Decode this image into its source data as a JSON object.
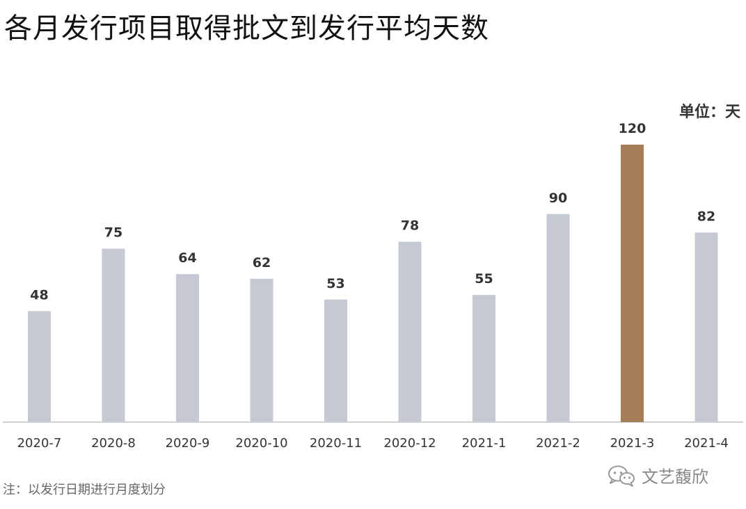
{
  "chart_data": {
    "type": "bar",
    "title": "各月发行项目取得批文到发行平均天数",
    "unit_label": "单位：天",
    "categories": [
      "2020-7",
      "2020-8",
      "2020-9",
      "2020-10",
      "2020-11",
      "2020-12",
      "2021-1",
      "2021-2",
      "2021-3",
      "2021-4"
    ],
    "values": [
      48,
      75,
      64,
      62,
      53,
      78,
      55,
      90,
      120,
      82
    ],
    "highlight_index": 8,
    "colors": {
      "bar": "#c4c9d4",
      "highlight": "#a57d57",
      "axis": "#d0d0d0",
      "label": "#333333"
    },
    "ylim": [
      0,
      120
    ],
    "grid": false,
    "footnote": "注：以发行日期进行月度划分"
  },
  "watermark": {
    "text": "文艺馥欣",
    "icon": "wechat-icon"
  }
}
